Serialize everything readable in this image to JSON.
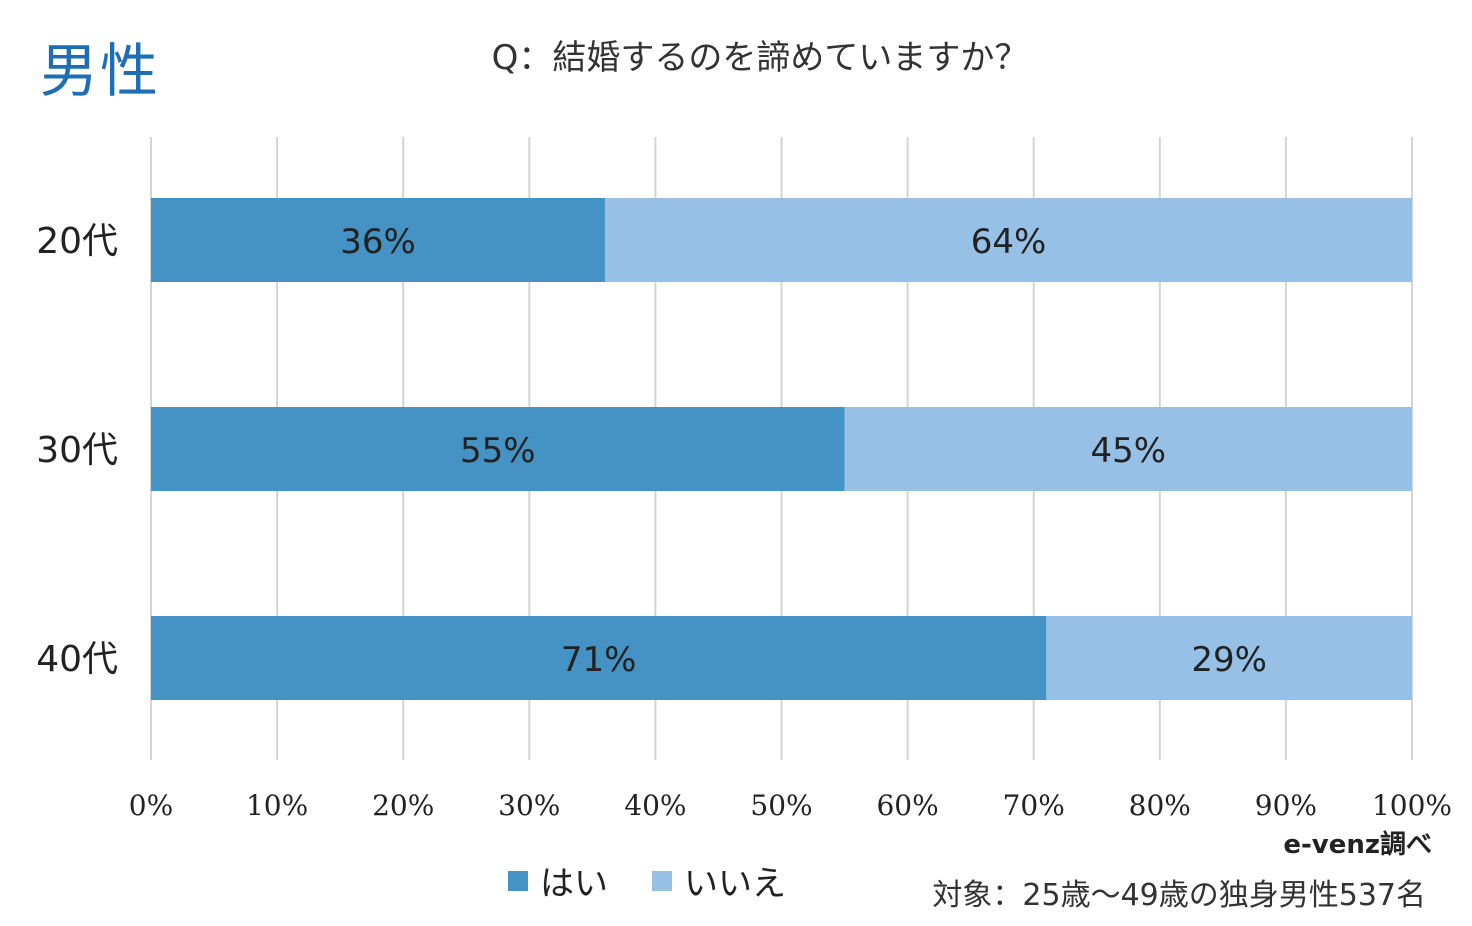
{
  "badge": "男性",
  "source_note": "e-venz調べ",
  "target_note": "対象：25歳～49歳の独身男性537名",
  "colors": {
    "yes": "#4592c4",
    "no": "#96c0e6",
    "grid": "#d4d4d4",
    "text": "#222222"
  },
  "chart_data": {
    "type": "bar",
    "orientation": "horizontal",
    "stacked": true,
    "title": "Q：結婚するのを諦めていますか？",
    "categories": [
      "20代",
      "30代",
      "40代"
    ],
    "series": [
      {
        "name": "はい",
        "values": [
          36,
          55,
          71
        ],
        "labels": [
          "36%",
          "55%",
          "71%"
        ],
        "color": "#4592c4"
      },
      {
        "name": "いいえ",
        "values": [
          64,
          45,
          29
        ],
        "labels": [
          "64%",
          "45%",
          "29%"
        ],
        "color": "#96c0e6"
      }
    ],
    "x_ticks": [
      "0%",
      "10%",
      "20%",
      "30%",
      "40%",
      "50%",
      "60%",
      "70%",
      "80%",
      "90%",
      "100%"
    ],
    "xlim": [
      0,
      100
    ],
    "grid": true,
    "legend": "bottom"
  }
}
